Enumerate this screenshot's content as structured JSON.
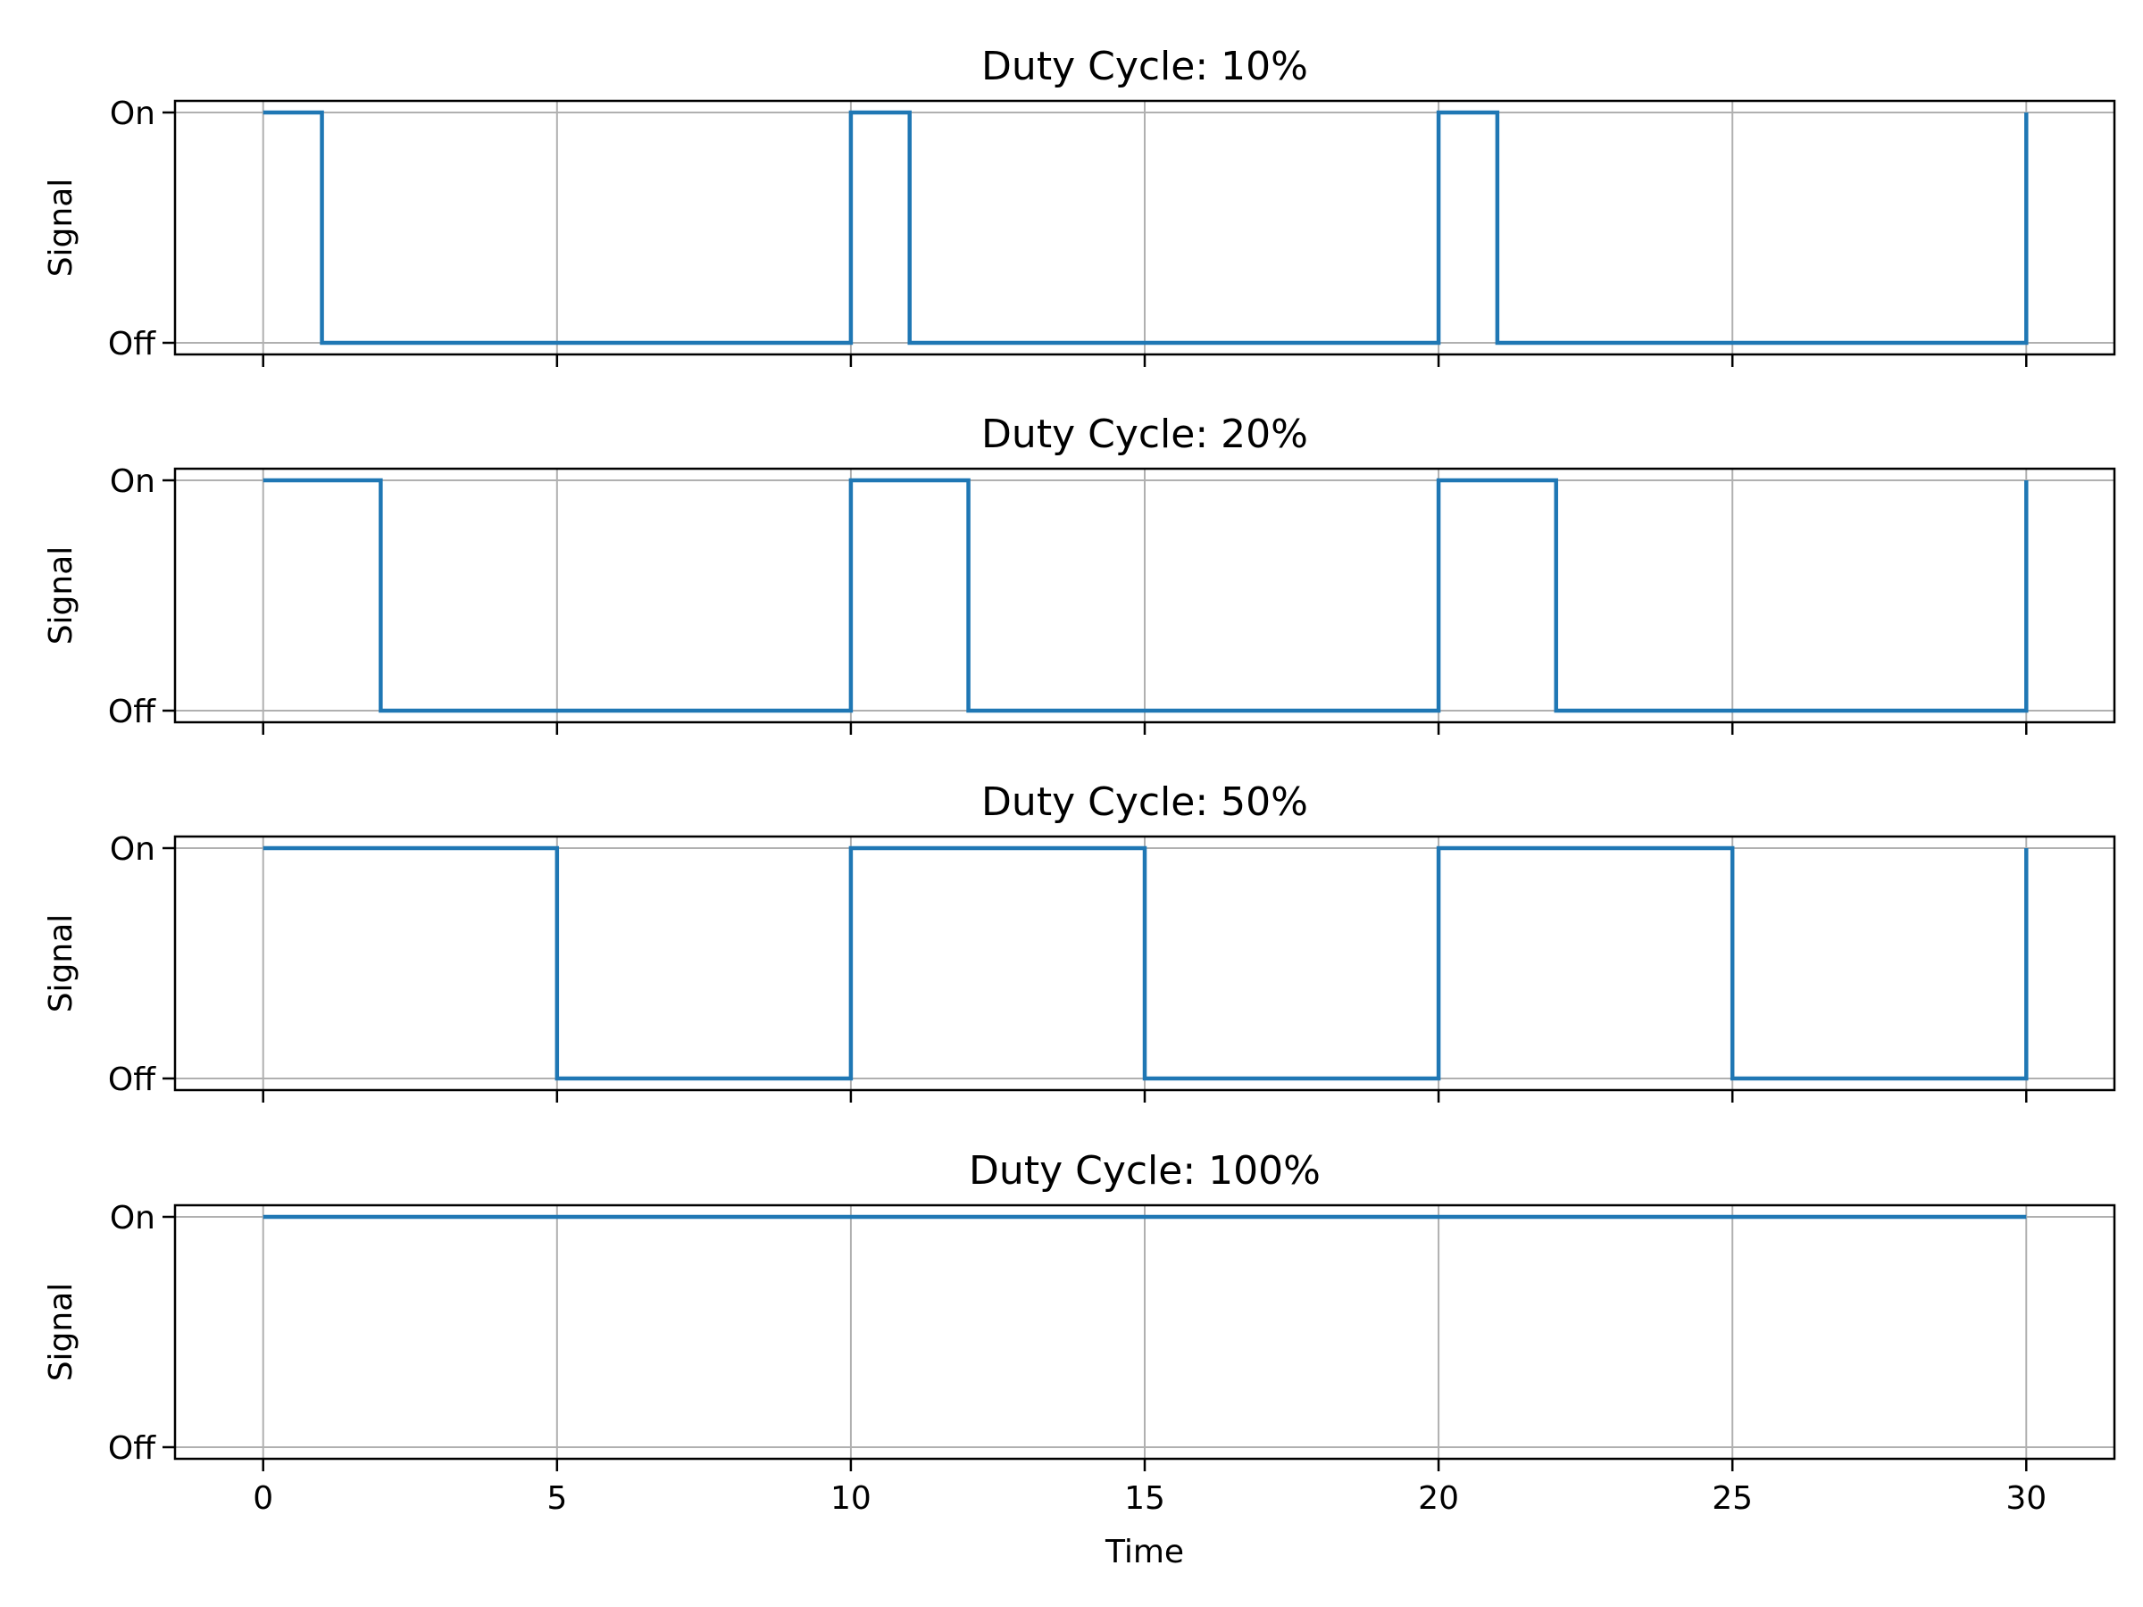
{
  "figure": {
    "xlabel": "Time",
    "ylabel": "Signal",
    "line_color": "#1f77b4",
    "grid_color": "#b0b0b0"
  },
  "chart_data": [
    {
      "type": "line",
      "step": "post",
      "title": "Duty Cycle: 10%",
      "xlabel": "",
      "ylabel": "Signal",
      "xlim": [
        -1.5,
        31.5
      ],
      "ylim": [
        0,
        1
      ],
      "xticks": [
        0,
        5,
        10,
        15,
        20,
        25,
        30
      ],
      "xtick_labels": [
        "",
        "",
        "",
        "",
        "",
        "",
        ""
      ],
      "yticks": [
        0,
        1
      ],
      "ytick_labels": [
        "Off",
        "On"
      ],
      "grid": true,
      "series": [
        {
          "x": [
            0,
            1,
            10,
            11,
            20,
            21,
            30
          ],
          "y": [
            1,
            0,
            1,
            0,
            1,
            0,
            1
          ]
        }
      ]
    },
    {
      "type": "line",
      "step": "post",
      "title": "Duty Cycle: 20%",
      "xlabel": "",
      "ylabel": "Signal",
      "xlim": [
        -1.5,
        31.5
      ],
      "ylim": [
        0,
        1
      ],
      "xticks": [
        0,
        5,
        10,
        15,
        20,
        25,
        30
      ],
      "xtick_labels": [
        "",
        "",
        "",
        "",
        "",
        "",
        ""
      ],
      "yticks": [
        0,
        1
      ],
      "ytick_labels": [
        "Off",
        "On"
      ],
      "grid": true,
      "series": [
        {
          "x": [
            0,
            2,
            10,
            12,
            20,
            22,
            30
          ],
          "y": [
            1,
            0,
            1,
            0,
            1,
            0,
            1
          ]
        }
      ]
    },
    {
      "type": "line",
      "step": "post",
      "title": "Duty Cycle: 50%",
      "xlabel": "",
      "ylabel": "Signal",
      "xlim": [
        -1.5,
        31.5
      ],
      "ylim": [
        0,
        1
      ],
      "xticks": [
        0,
        5,
        10,
        15,
        20,
        25,
        30
      ],
      "xtick_labels": [
        "",
        "",
        "",
        "",
        "",
        "",
        ""
      ],
      "yticks": [
        0,
        1
      ],
      "ytick_labels": [
        "Off",
        "On"
      ],
      "grid": true,
      "series": [
        {
          "x": [
            0,
            5,
            10,
            15,
            20,
            25,
            30
          ],
          "y": [
            1,
            0,
            1,
            0,
            1,
            0,
            1
          ]
        }
      ]
    },
    {
      "type": "line",
      "step": "post",
      "title": "Duty Cycle: 100%",
      "xlabel": "Time",
      "ylabel": "Signal",
      "xlim": [
        -1.5,
        31.5
      ],
      "ylim": [
        0,
        1
      ],
      "xticks": [
        0,
        5,
        10,
        15,
        20,
        25,
        30
      ],
      "xtick_labels": [
        "0",
        "5",
        "10",
        "15",
        "20",
        "25",
        "30"
      ],
      "yticks": [
        0,
        1
      ],
      "ytick_labels": [
        "Off",
        "On"
      ],
      "grid": true,
      "series": [
        {
          "x": [
            0,
            30
          ],
          "y": [
            1,
            1
          ]
        }
      ]
    }
  ]
}
